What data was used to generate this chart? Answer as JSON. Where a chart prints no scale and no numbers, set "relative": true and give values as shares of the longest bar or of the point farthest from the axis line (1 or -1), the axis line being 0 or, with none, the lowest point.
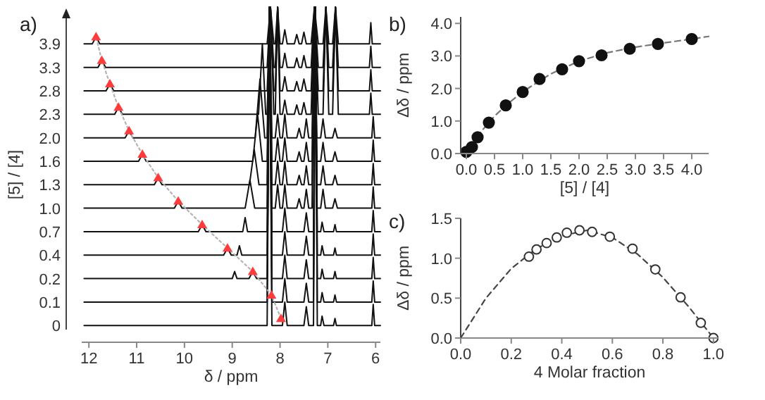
{
  "chart_data": [
    {
      "type": "line",
      "title": "a)",
      "xlabel": "δ / ppm",
      "ylabel": "[5] / [4]",
      "xlim": [
        12.15,
        5.9
      ],
      "xticks": [
        12,
        11,
        10,
        9,
        8,
        7,
        6
      ],
      "relative": true,
      "tick_labels": "x",
      "series": [
        {
          "name": "0",
          "color": "#111111",
          "x": [
            12.1,
            8.27,
            8.22,
            8.17,
            7.95,
            7.9,
            7.85,
            7.5,
            7.45,
            7.4,
            7.3,
            7.26,
            7.22,
            7.15,
            7.12,
            7.08,
            6.88,
            6.85,
            6.82,
            6.08,
            6.05,
            6.02,
            5.9
          ],
          "values": [
            0.05,
            0.05,
            1,
            0.05,
            0.05,
            0.12,
            0.05,
            0.05,
            0.106,
            0.05,
            0.05,
            1,
            0.05,
            0.05,
            0.078,
            0.05,
            0.05,
            0.071,
            0.05,
            0.05,
            0.113,
            0.05,
            0.05
          ]
        },
        {
          "name": "0.1",
          "color": "#111111",
          "x": [
            12.1,
            8.27,
            8.22,
            8.17,
            7.95,
            7.9,
            7.85,
            7.5,
            7.45,
            7.4,
            7.3,
            7.26,
            7.22,
            7.15,
            7.12,
            7.08,
            6.88,
            6.85,
            6.82,
            6.08,
            6.05,
            6.02,
            5.9
          ],
          "values": [
            0.12,
            0.12,
            1,
            0.12,
            0.12,
            0.19,
            0.12,
            0.12,
            0.176,
            0.12,
            0.12,
            1,
            0.12,
            0.12,
            0.148,
            0.12,
            0.12,
            0.141,
            0.12,
            0.12,
            0.183,
            0.12,
            0.12
          ]
        },
        {
          "name": "0.2",
          "color": "#111111",
          "x": [
            12.1,
            9.0,
            8.95,
            8.9,
            8.65,
            8.57,
            8.49,
            8.27,
            8.22,
            8.17,
            7.95,
            7.9,
            7.85,
            7.5,
            7.45,
            7.4,
            7.3,
            7.26,
            7.22,
            7.15,
            7.12,
            7.08,
            6.88,
            6.85,
            6.82,
            6.08,
            6.05,
            6.02,
            5.9
          ],
          "values": [
            0.19,
            0.19,
            0.211,
            0.19,
            0.19,
            0.211,
            0.19,
            0.19,
            1,
            0.19,
            0.19,
            0.26,
            0.19,
            0.19,
            0.246,
            0.19,
            0.19,
            1,
            0.19,
            0.19,
            0.218,
            0.19,
            0.19,
            0.211,
            0.19,
            0.19,
            0.253,
            0.19,
            0.19
          ]
        },
        {
          "name": "0.4",
          "color": "#111111",
          "x": [
            12.1,
            9.18,
            9.1,
            9.02,
            8.9,
            8.85,
            8.8,
            8.27,
            8.22,
            8.17,
            7.95,
            7.9,
            7.85,
            7.5,
            7.45,
            7.4,
            7.3,
            7.26,
            7.22,
            7.15,
            7.12,
            7.08,
            6.88,
            6.85,
            6.82,
            6.08,
            6.05,
            6.02,
            5.9
          ],
          "values": [
            0.26,
            0.26,
            0.281,
            0.26,
            0.26,
            0.288,
            0.26,
            0.26,
            1,
            0.26,
            0.26,
            0.33,
            0.26,
            0.26,
            0.316,
            0.26,
            0.26,
            1,
            0.26,
            0.26,
            0.288,
            0.26,
            0.26,
            0.281,
            0.26,
            0.26,
            0.323,
            0.26,
            0.26
          ]
        },
        {
          "name": "0.7",
          "color": "#111111",
          "x": [
            12.1,
            9.71,
            9.63,
            9.55,
            8.78,
            8.73,
            8.68,
            8.27,
            8.22,
            8.17,
            7.95,
            7.9,
            7.85,
            7.5,
            7.45,
            7.4,
            7.3,
            7.26,
            7.22,
            7.15,
            7.12,
            7.08,
            6.88,
            6.85,
            6.82,
            6.08,
            6.05,
            6.02,
            5.9
          ],
          "values": [
            0.33,
            0.33,
            0.351,
            0.33,
            0.33,
            0.372,
            0.33,
            0.33,
            1,
            0.33,
            0.33,
            0.4,
            0.33,
            0.33,
            0.386,
            0.33,
            0.33,
            1,
            0.33,
            0.33,
            0.358,
            0.33,
            0.33,
            0.351,
            0.33,
            0.33,
            0.393,
            0.33,
            0.33
          ]
        },
        {
          "name": "1.0",
          "color": "#111111",
          "x": [
            12.1,
            10.21,
            10.13,
            10.05,
            8.73,
            8.63,
            8.53,
            8.27,
            8.22,
            8.17,
            8.1,
            8.05,
            8.0,
            7.95,
            7.9,
            7.85,
            7.65,
            7.6,
            7.55,
            7.5,
            7.45,
            7.4,
            7.33,
            7.28,
            7.23,
            7.15,
            7.1,
            7.05,
            6.9,
            6.85,
            6.8,
            6.08,
            6.05,
            6.02,
            5.9
          ],
          "values": [
            0.4,
            0.4,
            0.421,
            0.4,
            0.4,
            0.484,
            0.4,
            0.4,
            1,
            0.4,
            0.4,
            0.47,
            0.4,
            0.4,
            0.47,
            0.4,
            0.4,
            0.428,
            0.4,
            0.4,
            0.456,
            0.4,
            0.4,
            1,
            0.4,
            0.4,
            0.456,
            0.4,
            0.4,
            0.428,
            0.4,
            0.4,
            0.463,
            0.4,
            0.4
          ]
        },
        {
          "name": "1.3",
          "color": "#111111",
          "x": [
            12.1,
            10.63,
            10.55,
            10.47,
            8.64,
            8.54,
            8.44,
            8.27,
            8.22,
            8.17,
            8.1,
            8.05,
            8.0,
            7.95,
            7.9,
            7.85,
            7.65,
            7.6,
            7.55,
            7.5,
            7.45,
            7.4,
            7.33,
            7.28,
            7.23,
            7.15,
            7.1,
            7.05,
            6.9,
            6.85,
            6.8,
            6.08,
            6.05,
            6.02,
            5.9
          ],
          "values": [
            0.47,
            0.47,
            0.491,
            0.47,
            0.47,
            0.575,
            0.47,
            0.47,
            1,
            0.47,
            0.47,
            0.54,
            0.47,
            0.47,
            0.54,
            0.47,
            0.47,
            0.498,
            0.47,
            0.47,
            0.526,
            0.47,
            0.47,
            1,
            0.47,
            0.47,
            0.526,
            0.47,
            0.47,
            0.498,
            0.47,
            0.47,
            0.533,
            0.47,
            0.47
          ]
        },
        {
          "name": "1.6",
          "color": "#111111",
          "x": [
            12.1,
            10.96,
            10.88,
            10.8,
            8.57,
            8.47,
            8.37,
            8.27,
            8.22,
            8.17,
            8.1,
            8.05,
            8.0,
            7.95,
            7.9,
            7.85,
            7.65,
            7.6,
            7.55,
            7.5,
            7.45,
            7.4,
            7.33,
            7.28,
            7.23,
            7.15,
            7.1,
            7.05,
            6.9,
            6.85,
            6.8,
            6.08,
            6.05,
            6.02,
            5.9
          ],
          "values": [
            0.54,
            0.54,
            0.561,
            0.54,
            0.54,
            0.68,
            0.54,
            0.54,
            1,
            0.54,
            0.54,
            0.61,
            0.54,
            0.54,
            0.61,
            0.54,
            0.54,
            0.568,
            0.54,
            0.54,
            0.596,
            0.54,
            0.54,
            1,
            0.54,
            0.54,
            0.596,
            0.54,
            0.54,
            0.568,
            0.54,
            0.54,
            0.603,
            0.54,
            0.54
          ]
        },
        {
          "name": "2.0",
          "color": "#111111",
          "x": [
            12.1,
            11.24,
            11.16,
            11.08,
            8.52,
            8.42,
            8.32,
            8.27,
            8.22,
            8.17,
            8.1,
            8.05,
            8.0,
            7.95,
            7.9,
            7.85,
            7.65,
            7.6,
            7.55,
            7.5,
            7.45,
            7.4,
            7.33,
            7.28,
            7.23,
            7.15,
            7.1,
            7.05,
            6.9,
            6.85,
            6.8,
            6.08,
            6.05,
            6.02,
            5.9
          ],
          "values": [
            0.61,
            0.61,
            0.631,
            0.61,
            0.61,
            0.785,
            0.61,
            0.61,
            1,
            0.61,
            0.61,
            0.68,
            0.61,
            0.61,
            0.68,
            0.61,
            0.61,
            0.638,
            0.61,
            0.61,
            0.666,
            0.61,
            0.61,
            1,
            0.61,
            0.61,
            0.666,
            0.61,
            0.61,
            0.638,
            0.61,
            0.61,
            0.673,
            0.61,
            0.61
          ]
        },
        {
          "name": "2.3",
          "color": "#111111",
          "x": [
            12.1,
            11.46,
            11.38,
            11.3,
            8.45,
            8.37,
            8.3,
            8.27,
            8.2,
            8.13,
            8.1,
            8.05,
            8.0,
            7.95,
            7.9,
            7.85,
            7.7,
            7.65,
            7.6,
            7.55,
            7.5,
            7.45,
            7.35,
            7.28,
            7.2,
            7.1,
            7.04,
            6.98,
            6.9,
            6.84,
            6.78,
            6.13,
            6.1,
            6.07,
            5.9
          ],
          "values": [
            0.68,
            0.68,
            0.701,
            0.68,
            0.68,
            0.89,
            0.68,
            0.68,
            1,
            0.68,
            0.68,
            1,
            0.68,
            0.68,
            0.722,
            0.68,
            0.68,
            0.708,
            0.68,
            0.68,
            0.715,
            0.68,
            0.68,
            1,
            0.68,
            0.68,
            1,
            0.68,
            0.68,
            1,
            0.68,
            0.68,
            0.743,
            0.68,
            0.68
          ]
        },
        {
          "name": "2.8",
          "color": "#111111",
          "x": [
            12.1,
            11.64,
            11.56,
            11.48,
            8.27,
            8.2,
            8.13,
            8.1,
            8.05,
            8.0,
            7.95,
            7.9,
            7.85,
            7.7,
            7.65,
            7.6,
            7.55,
            7.5,
            7.45,
            7.35,
            7.28,
            7.2,
            7.1,
            7.04,
            6.98,
            6.9,
            6.84,
            6.78,
            6.13,
            6.1,
            6.07,
            5.9
          ],
          "values": [
            0.75,
            0.75,
            0.771,
            0.75,
            0.75,
            1,
            0.75,
            0.75,
            1,
            0.75,
            0.75,
            0.792,
            0.75,
            0.75,
            0.778,
            0.75,
            0.75,
            0.785,
            0.75,
            0.75,
            1,
            0.75,
            0.75,
            1,
            0.75,
            0.75,
            1,
            0.75,
            0.75,
            0.813,
            0.75,
            0.75
          ]
        },
        {
          "name": "3.3",
          "color": "#111111",
          "x": [
            12.1,
            11.81,
            11.73,
            11.65,
            8.27,
            8.2,
            8.13,
            8.1,
            8.05,
            8.0,
            7.95,
            7.9,
            7.85,
            7.7,
            7.65,
            7.6,
            7.55,
            7.5,
            7.45,
            7.35,
            7.28,
            7.2,
            7.1,
            7.04,
            6.98,
            6.9,
            6.84,
            6.78,
            6.13,
            6.1,
            6.07,
            5.9
          ],
          "values": [
            0.82,
            0.82,
            0.841,
            0.82,
            0.82,
            1,
            0.82,
            0.82,
            1,
            0.82,
            0.82,
            0.862,
            0.82,
            0.82,
            0.848,
            0.82,
            0.82,
            0.855,
            0.82,
            0.82,
            1,
            0.82,
            0.82,
            1,
            0.82,
            0.82,
            1,
            0.82,
            0.82,
            0.883,
            0.82,
            0.82
          ]
        },
        {
          "name": "3.9",
          "color": "#111111",
          "x": [
            12.1,
            11.93,
            11.85,
            11.77,
            8.27,
            8.2,
            8.13,
            8.1,
            8.05,
            8.0,
            7.95,
            7.9,
            7.85,
            7.7,
            7.65,
            7.6,
            7.55,
            7.5,
            7.45,
            7.35,
            7.28,
            7.2,
            7.1,
            7.04,
            6.98,
            6.9,
            6.84,
            6.78,
            6.13,
            6.1,
            6.07,
            5.9
          ],
          "values": [
            0.89,
            0.89,
            0.911,
            0.89,
            0.89,
            1,
            0.89,
            0.89,
            1,
            0.89,
            0.89,
            0.932,
            0.89,
            0.89,
            0.918,
            0.89,
            0.89,
            0.925,
            0.89,
            0.89,
            1,
            0.89,
            0.89,
            1,
            0.89,
            0.89,
            1,
            0.89,
            0.89,
            0.953,
            0.89,
            0.89
          ]
        },
        {
          "color": "#b4b4b4",
          "line_style": "dotted",
          "x": [
            7.98,
            8.18,
            8.57,
            9.1,
            9.63,
            10.13,
            10.55,
            10.88,
            11.16,
            11.38,
            11.56,
            11.73,
            11.85
          ],
          "values": [
            0.071,
            0.141,
            0.211,
            0.281,
            0.351,
            0.421,
            0.491,
            0.561,
            0.631,
            0.701,
            0.771,
            0.841,
            0.911
          ]
        },
        {
          "type": "scatter",
          "marker": "triangle",
          "color": "#ff3b3b",
          "x": [
            7.98,
            8.18,
            8.57,
            9.1,
            9.63,
            10.13,
            10.55,
            10.88,
            11.16,
            11.38,
            11.56,
            11.73,
            11.85
          ],
          "values": [
            0.071,
            0.141,
            0.211,
            0.281,
            0.351,
            0.421,
            0.491,
            0.561,
            0.631,
            0.701,
            0.771,
            0.841,
            0.911
          ]
        }
      ]
    },
    {
      "type": "scatter",
      "title": "b)",
      "xlabel": "[5] / [4]",
      "ylabel": "Δδ / ppm",
      "xlim": [
        -0.1,
        4.3
      ],
      "ylim": [
        0,
        4.2
      ],
      "xticks": [
        {
          "value": 0,
          "label": "0.0"
        },
        {
          "value": 0.5,
          "label": "0.5"
        },
        {
          "value": 1,
          "label": "1.0"
        },
        {
          "value": 1.5,
          "label": "1.5"
        },
        {
          "value": 2,
          "label": "2.0"
        },
        {
          "value": 2.5,
          "label": "2.5"
        },
        {
          "value": 3,
          "label": "3.0"
        },
        {
          "value": 3.5,
          "label": "3.5"
        },
        {
          "value": 4,
          "label": "4.0"
        }
      ],
      "yticks": [
        {
          "value": 0,
          "label": "0.0"
        },
        {
          "value": 1,
          "label": "1.0"
        },
        {
          "value": 2,
          "label": "2.0"
        },
        {
          "value": 3,
          "label": "3.0"
        },
        {
          "value": 4,
          "label": "4.0"
        }
      ],
      "series": [
        {
          "type": "line",
          "line_style": "dashed",
          "color": "#777777",
          "x": [
            0,
            0.25,
            0.5,
            0.75,
            1,
            1.5,
            2,
            2.5,
            3,
            3.5,
            4,
            4.3
          ],
          "values": [
            0,
            0.65,
            1.15,
            1.55,
            1.9,
            2.45,
            2.84,
            3.1,
            3.27,
            3.4,
            3.52,
            3.6
          ]
        },
        {
          "marker": "circle",
          "color": "#111111",
          "x": [
            0,
            0.1,
            0.2,
            0.4,
            0.7,
            1.0,
            1.3,
            1.7,
            2.0,
            2.4,
            2.9,
            3.4,
            4.0
          ],
          "values": [
            0.05,
            0.2,
            0.5,
            0.95,
            1.48,
            1.89,
            2.29,
            2.59,
            2.84,
            3.02,
            3.22,
            3.37,
            3.52
          ]
        }
      ]
    },
    {
      "type": "scatter",
      "title": "c)",
      "xlabel": "4 Molar fraction",
      "ylabel": "Δδ / ppm",
      "xlim": [
        0,
        1.02
      ],
      "ylim": [
        0,
        1.5
      ],
      "xticks": [
        {
          "value": 0,
          "label": "0.0"
        },
        {
          "value": 0.2,
          "label": "0.2"
        },
        {
          "value": 0.4,
          "label": "0.4"
        },
        {
          "value": 0.6,
          "label": "0.6"
        },
        {
          "value": 0.8,
          "label": "0.8"
        },
        {
          "value": 1,
          "label": "1.0"
        }
      ],
      "yticks": [
        {
          "value": 0,
          "label": "0.0"
        },
        {
          "value": 0.5,
          "label": "0.5"
        },
        {
          "value": 1,
          "label": "1.0"
        },
        {
          "value": 1.5,
          "label": "1.5"
        }
      ],
      "series": [
        {
          "type": "line",
          "line_style": "dashed",
          "color": "#444444",
          "x": [
            0,
            0.1,
            0.2,
            0.3,
            0.4,
            0.5,
            0.6,
            0.7,
            0.8,
            0.9,
            1.0
          ],
          "values": [
            0,
            0.5,
            0.87,
            1.12,
            1.28,
            1.35,
            1.26,
            1.05,
            0.76,
            0.4,
            0
          ]
        },
        {
          "marker": "circle",
          "color": "#333333",
          "x": [
            0.27,
            0.3,
            0.34,
            0.38,
            0.42,
            0.47,
            0.52,
            0.59,
            0.68,
            0.77,
            0.87,
            0.95,
            1.0
          ],
          "values": [
            1.02,
            1.11,
            1.19,
            1.26,
            1.32,
            1.35,
            1.33,
            1.27,
            1.12,
            0.86,
            0.51,
            0.19,
            0
          ]
        }
      ]
    }
  ]
}
